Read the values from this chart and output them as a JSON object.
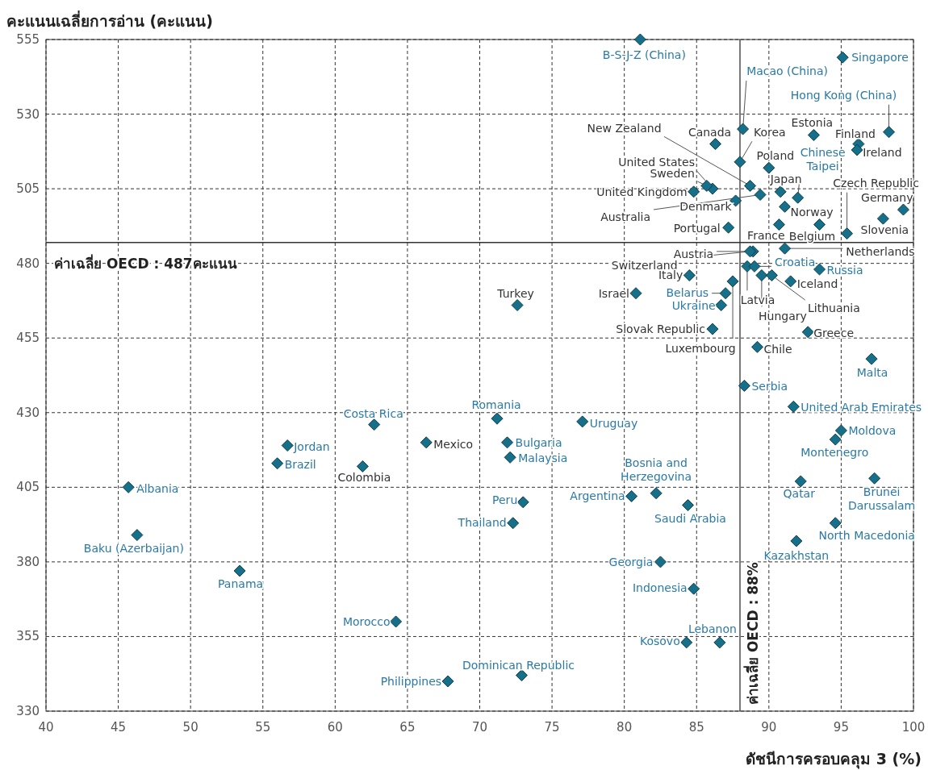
{
  "chart_data": {
    "type": "scatter",
    "xlabel": "ดัชนีการครอบคลุม 3 (%)",
    "ylabel": "คะแนนเฉลี่ยการอ่าน (คะแนน)",
    "xlim": [
      40,
      100
    ],
    "ylim": [
      330,
      555
    ],
    "xticks": [
      40,
      45,
      50,
      55,
      60,
      65,
      70,
      75,
      80,
      85,
      90,
      95,
      100
    ],
    "yticks": [
      330,
      355,
      380,
      405,
      430,
      455,
      480,
      505,
      530,
      555
    ],
    "grid": true,
    "marker": "diamond",
    "ref_lines": [
      {
        "axis": "x",
        "value": 88,
        "label": "ค่าเฉลี่ย OECD : 88%",
        "color": "#333333"
      },
      {
        "axis": "y",
        "value": 487,
        "label": "ค่าเฉลี่ย OECD : 487คะแนน",
        "color": "#333333"
      }
    ],
    "series": [
      {
        "color": "#17708a",
        "x": [
          86.3,
          88.0,
          88.7,
          93.1,
          96.2,
          96.1,
          90.0,
          86.1,
          85.7,
          84.8,
          87.7,
          89.4,
          90.8,
          91.1,
          99.3,
          97.9,
          87.2,
          90.7,
          93.5,
          95.4,
          88.9,
          88.7,
          91.1,
          88.5,
          89.5,
          90.2,
          91.5,
          84.5,
          87.5,
          80.8,
          72.6,
          86.1,
          92.7,
          89.2,
          66.3,
          61.9
        ],
        "values": [
          520,
          514,
          506,
          523,
          520,
          518,
          512,
          505,
          506,
          504,
          501,
          503,
          504,
          499,
          498,
          495,
          492,
          493,
          493,
          490,
          484,
          484,
          485,
          479,
          476,
          476,
          474,
          476,
          474,
          470,
          466,
          458,
          457,
          452,
          420,
          412
        ],
        "value_labels": [
          "Canada",
          "Korea",
          "New Zealand",
          "Estonia",
          "Finland",
          "Ireland",
          "Poland",
          "United States",
          "Sweden",
          "United Kingdom",
          "Denmark",
          "Australia",
          "Japan",
          "Norway",
          "Germany",
          "Slovenia",
          "Portugal",
          "France",
          "Belgium",
          "Czech Republic",
          "Austria",
          "Switzerland",
          "Netherlands",
          "Latvia",
          "Hungary",
          "Lithuania",
          "Iceland",
          "Italy",
          "Luxembourg",
          "Israel",
          "Turkey",
          "Slovak Republic",
          "Greece",
          "Chile",
          "Mexico",
          "Colombia"
        ]
      },
      {
        "color": "#17708a",
        "x": [
          81.1,
          95.1,
          88.2,
          98.3,
          92.0,
          89.0,
          93.5,
          87.0,
          86.7,
          97.1,
          88.3,
          91.7,
          95.0,
          94.6,
          97.3,
          92.2,
          94.6,
          91.9,
          62.7,
          71.2,
          77.1,
          56.7,
          56.0,
          71.9,
          72.1,
          45.7,
          82.2,
          80.5,
          73.0,
          84.4,
          72.3,
          46.3,
          82.5,
          53.4,
          84.8,
          64.2,
          84.3,
          86.6,
          72.9,
          67.8
        ],
        "values": [
          555,
          549,
          525,
          524,
          502,
          479,
          478,
          470,
          466,
          448,
          439,
          432,
          424,
          421,
          408,
          407,
          393,
          387,
          426,
          428,
          427,
          419,
          413,
          420,
          415,
          405,
          403,
          402,
          400,
          399,
          393,
          389,
          380,
          377,
          371,
          360,
          353,
          353,
          342,
          340
        ],
        "value_labels": [
          "B-S-J-Z (China)",
          "Singapore",
          "Macao (China)",
          "Hong Kong (China)",
          "Chinese Taipei",
          "Croatia",
          "Russia",
          "Belarus",
          "Ukraine",
          "Malta",
          "Serbia",
          "United Arab Emirates",
          "Moldova",
          "Montenegro",
          "Brunei Darussalam",
          "Qatar",
          "North Macedonia",
          "Kazakhstan",
          "Costa Rica",
          "Romania",
          "Uruguay",
          "Jordan",
          "Brazil",
          "Bulgaria",
          "Malaysia",
          "Albania",
          "Bosnia and Herzegovina",
          "Argentina",
          "Peru",
          "Saudi Arabia",
          "Thailand",
          "Baku (Azerbaijan)",
          "Georgia",
          "Panama",
          "Indonesia",
          "Morocco",
          "Kosovo",
          "Lebanon",
          "Dominican Republic",
          "Philippines"
        ]
      }
    ]
  }
}
